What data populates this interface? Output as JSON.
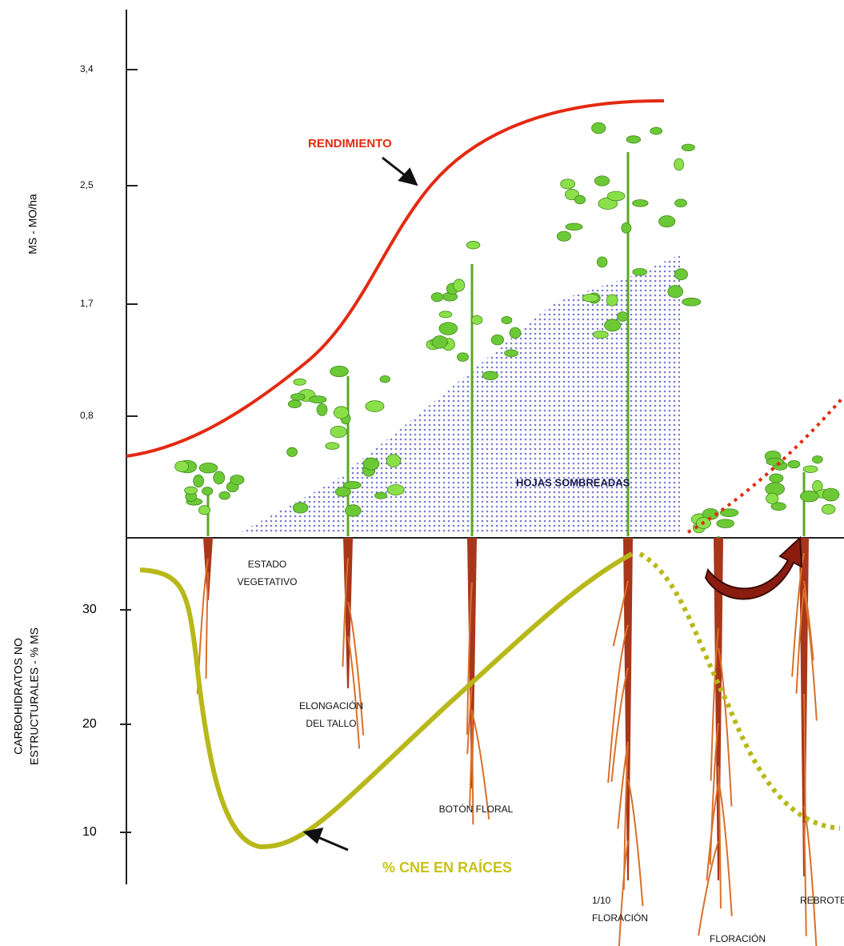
{
  "axes": {
    "upper_label": "MS - MO/ha",
    "lower_label": [
      "CARBOHIDRATOS NO",
      "ESTRUCTURALES - % MS"
    ],
    "upper_ticks": [
      "3,4",
      "2,5",
      "1,7",
      "0,8"
    ],
    "lower_ticks": [
      "30",
      "20",
      "10"
    ]
  },
  "curves": {
    "yield": "RENDIMIENTO",
    "roots": "% CNE EN RAÍCES",
    "shaded": "HOJAS SOMBREADAS"
  },
  "stages": [
    {
      "lines": [
        "ESTADO",
        "VEGETATIVO"
      ]
    },
    {
      "lines": [
        "ELONGACIÓN",
        "DEL TALLO"
      ]
    },
    {
      "lines": [
        "BOTÓN FLORAL"
      ]
    },
    {
      "lines": [
        "1/10",
        "FLORACIÓN"
      ]
    },
    {
      "lines": [
        "FLORACIÓN"
      ]
    },
    {
      "lines": [
        "REBROTE"
      ]
    }
  ]
}
